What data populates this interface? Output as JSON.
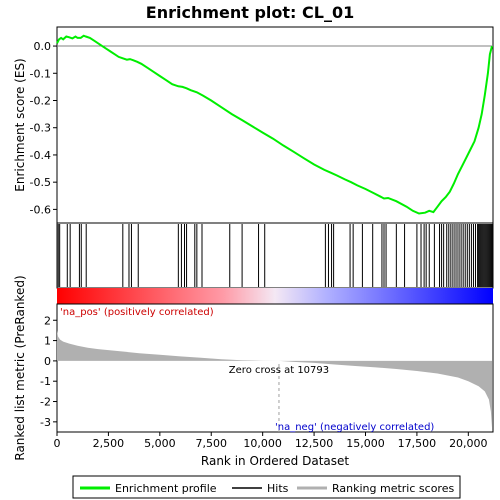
{
  "chart_data": {
    "type": "line",
    "title": "Enrichment plot: CL_01",
    "xlabel": "Rank in Ordered Dataset",
    "top_panel": {
      "ylabel": "Enrichment score (ES)",
      "ylim": [
        -0.65,
        0.07
      ],
      "yticks": [
        0.0,
        -0.1,
        -0.2,
        -0.3,
        -0.4,
        -0.5,
        -0.6
      ],
      "ytick_labels": [
        "0.0",
        "-0.1",
        "-0.2",
        "-0.3",
        "-0.4",
        "-0.5",
        "-0.6"
      ],
      "series": [
        {
          "name": "Enrichment profile",
          "color": "#00ee00",
          "x": [
            0,
            100,
            200,
            300,
            450,
            600,
            750,
            900,
            1000,
            1150,
            1300,
            1400,
            1600,
            1800,
            2000,
            2200,
            2400,
            2600,
            2800,
            3000,
            3200,
            3400,
            3550,
            3700,
            3900,
            4100,
            4400,
            4700,
            5000,
            5300,
            5600,
            5900,
            6100,
            6300,
            6500,
            6800,
            7100,
            7500,
            8000,
            8500,
            9000,
            9500,
            10000,
            10500,
            11000,
            11500,
            12000,
            12500,
            13000,
            13300,
            13600,
            14000,
            14300,
            14600,
            15000,
            15400,
            15700,
            15900,
            16100,
            16500,
            17000,
            17300,
            17600,
            17900,
            18100,
            18300,
            18500,
            18700,
            18900,
            19100,
            19300,
            19500,
            19700,
            19900,
            20100,
            20300,
            20500,
            20650,
            20800,
            20950,
            21050,
            21150
          ],
          "y": [
            0.01,
            0.025,
            0.03,
            0.025,
            0.035,
            0.032,
            0.028,
            0.035,
            0.03,
            0.03,
            0.038,
            0.035,
            0.03,
            0.02,
            0.01,
            0.0,
            -0.01,
            -0.02,
            -0.03,
            -0.04,
            -0.045,
            -0.05,
            -0.048,
            -0.052,
            -0.058,
            -0.065,
            -0.08,
            -0.095,
            -0.11,
            -0.125,
            -0.14,
            -0.148,
            -0.15,
            -0.155,
            -0.162,
            -0.17,
            -0.182,
            -0.2,
            -0.225,
            -0.25,
            -0.272,
            -0.295,
            -0.318,
            -0.34,
            -0.365,
            -0.388,
            -0.412,
            -0.435,
            -0.455,
            -0.465,
            -0.475,
            -0.49,
            -0.5,
            -0.512,
            -0.525,
            -0.54,
            -0.552,
            -0.56,
            -0.558,
            -0.57,
            -0.59,
            -0.605,
            -0.615,
            -0.612,
            -0.605,
            -0.61,
            -0.59,
            -0.57,
            -0.555,
            -0.535,
            -0.505,
            -0.47,
            -0.44,
            -0.41,
            -0.38,
            -0.35,
            -0.3,
            -0.25,
            -0.18,
            -0.1,
            -0.03,
            0.0
          ]
        }
      ]
    },
    "hits": {
      "name": "Hits",
      "color": "#000000",
      "positions": [
        60,
        130,
        500,
        640,
        1090,
        1180,
        1420,
        3200,
        3500,
        3620,
        3950,
        5900,
        6050,
        6200,
        6300,
        6700,
        6800,
        7050,
        8400,
        9000,
        9800,
        10100,
        13050,
        13200,
        13350,
        13450,
        14250,
        14400,
        14850,
        15350,
        15800,
        15900,
        16000,
        16500,
        16900,
        17500,
        17700,
        17850,
        17950,
        18100,
        18350,
        18600,
        18700,
        18800,
        18950,
        19050,
        19150,
        19250,
        19350,
        19450,
        19550,
        19650,
        19750,
        19850,
        19950,
        20050,
        20150,
        20250,
        20350,
        20450,
        20500,
        20550,
        20600,
        20650,
        20700,
        20750,
        20800,
        20850,
        20900,
        20950,
        21000,
        21050,
        21100,
        21150
      ]
    },
    "ranked_metric": {
      "name": "Ranking metric scores",
      "color": "#b0b0b0",
      "ylabel": "Ranked list metric (PreRanked)",
      "ylim": [
        -3.5,
        2.8
      ],
      "yticks": [
        2,
        1,
        0,
        -1,
        -2,
        -3
      ],
      "ytick_labels": [
        "2",
        "1",
        "0",
        "-1",
        "-2",
        "-3"
      ],
      "x": [
        0,
        50,
        150,
        300,
        600,
        1000,
        1500,
        2000,
        3000,
        4000,
        5000,
        6000,
        7000,
        8000,
        9000,
        10000,
        10793,
        11500,
        12500,
        13500,
        14500,
        15500,
        16500,
        17500,
        18500,
        19500,
        20000,
        20500,
        20800,
        21000,
        21100,
        21150
      ],
      "y": [
        1.5,
        1.2,
        1.05,
        0.95,
        0.85,
        0.75,
        0.65,
        0.58,
        0.48,
        0.38,
        0.3,
        0.22,
        0.15,
        0.08,
        0.03,
        0.01,
        0.0,
        -0.05,
        -0.1,
        -0.18,
        -0.25,
        -0.32,
        -0.4,
        -0.5,
        -0.62,
        -0.82,
        -1.0,
        -1.25,
        -1.5,
        -1.9,
        -2.5,
        -3.3
      ]
    },
    "xlim": [
      0,
      21200
    ],
    "xticks": [
      0,
      2500,
      5000,
      7500,
      10000,
      12500,
      15000,
      17500,
      20000
    ],
    "xtick_labels": [
      "0",
      "2,500",
      "5,000",
      "7,500",
      "10,000",
      "12,500",
      "15,000",
      "17,500",
      "20,000"
    ],
    "zero_cross": 10793,
    "annotations": {
      "zero_cross_label": "Zero cross at 10793",
      "pos_label": "'na_pos' (positively correlated)",
      "neg_label": "'na_neg' (negatively correlated)"
    },
    "legend": {
      "placement": "bottom",
      "entries": [
        {
          "label": "Enrichment profile",
          "color": "#00ee00"
        },
        {
          "label": "Hits",
          "color": "#000000"
        },
        {
          "label": "Ranking metric scores",
          "color": "#b0b0b0"
        }
      ]
    },
    "gradient_colors": {
      "positive": "#ff0000",
      "neutral": "#ffffff",
      "negative": "#0000ff"
    }
  }
}
